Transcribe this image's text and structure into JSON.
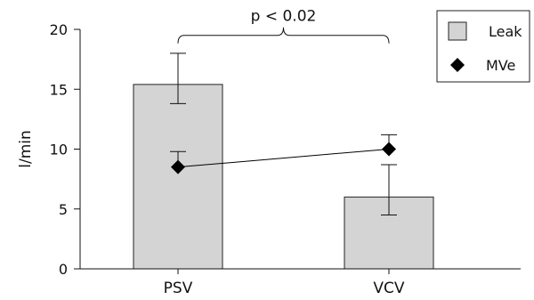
{
  "chart_data": {
    "type": "bar",
    "title": "",
    "xlabel": "",
    "ylabel": "l/min",
    "ylim": [
      0,
      20
    ],
    "yticks": [
      0,
      5,
      10,
      15,
      20
    ],
    "grid": false,
    "categories": [
      "PSV",
      "VCV"
    ],
    "series": [
      {
        "name": "Leak",
        "kind": "bar",
        "color": "#d4d4d4",
        "values": [
          15.4,
          6.0
        ],
        "error_upper": [
          18.0,
          8.7
        ],
        "error_lower": [
          13.8,
          4.5
        ]
      },
      {
        "name": "MVe",
        "kind": "line-marker",
        "marker": "diamond",
        "color": "#000000",
        "values": [
          8.5,
          10.0
        ],
        "error_upper": [
          9.8,
          11.2
        ]
      }
    ],
    "legend": {
      "position": "top-right",
      "entries": [
        "Leak",
        "MVe"
      ]
    },
    "annotation": {
      "text": "p < 0.02",
      "bracket_level": 19.5
    }
  }
}
